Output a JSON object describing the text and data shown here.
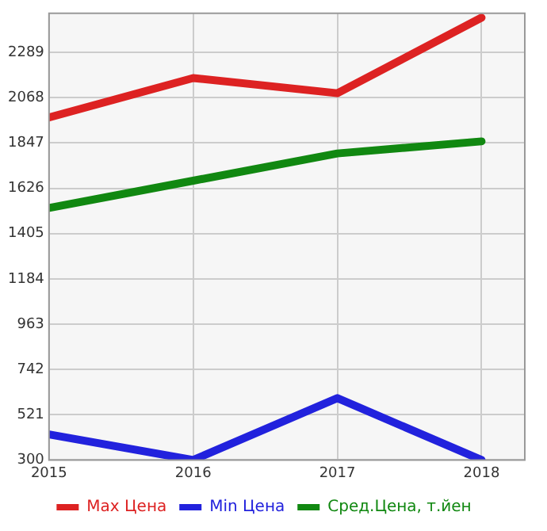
{
  "chart_data": {
    "type": "line",
    "x": [
      2015,
      2016,
      2017,
      2018
    ],
    "xlim": [
      2015,
      2018.3
    ],
    "xticks": [
      2015,
      2016,
      2017,
      2018
    ],
    "ylim": [
      300,
      2480
    ],
    "yticks": [
      300,
      521,
      742,
      963,
      1184,
      1405,
      1626,
      1847,
      2068,
      2289
    ],
    "series": [
      {
        "name": "Max Цена",
        "color": "#dd2222",
        "values": [
          1972,
          2164,
          2090,
          2459
        ]
      },
      {
        "name": "Min Цена",
        "color": "#2222dd",
        "values": [
          425,
          300,
          602,
          300
        ]
      },
      {
        "name": "Сред.Цена, т.йен",
        "color": "#118811",
        "values": [
          1530,
          1663,
          1796,
          1855
        ]
      }
    ],
    "grid": true,
    "legend": "bottom",
    "marker": "none",
    "line_style": "solid"
  }
}
